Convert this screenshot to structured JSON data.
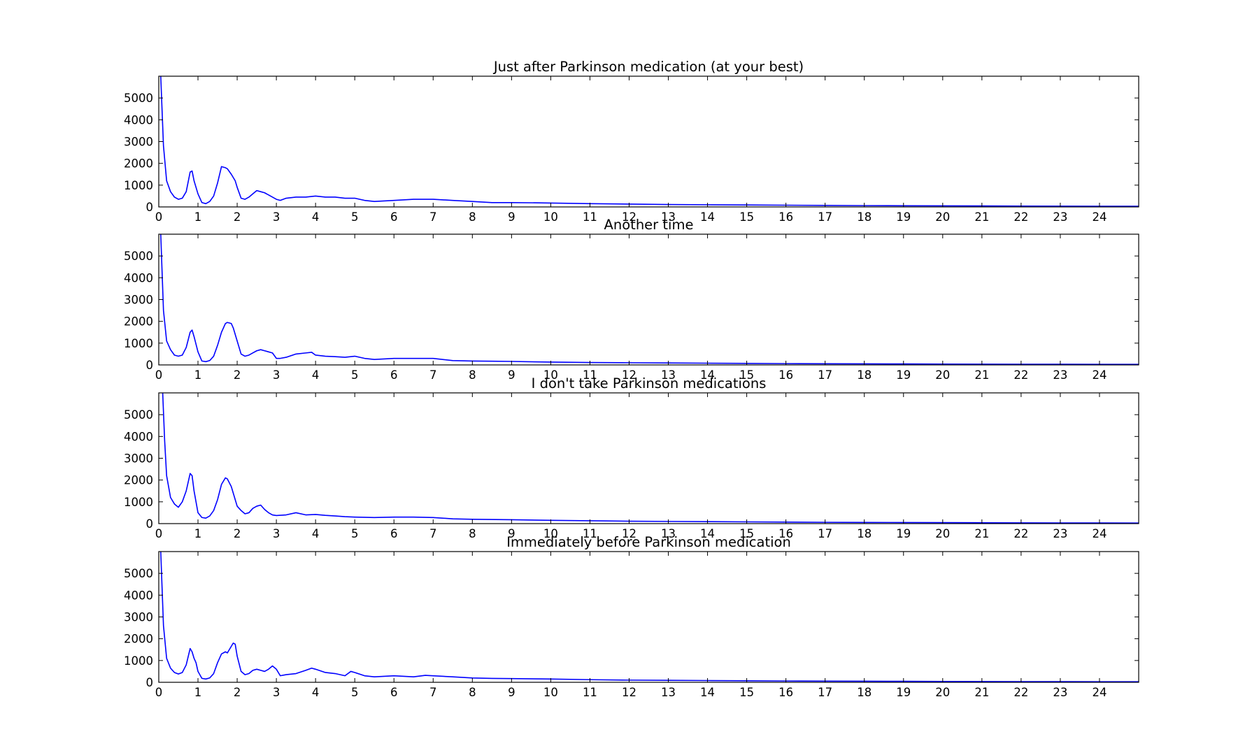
{
  "style": {
    "line_color": "#0000ff",
    "axes_color": "#000000",
    "background": "#ffffff"
  },
  "chart_data": [
    {
      "type": "line",
      "title": "Just after Parkinson medication (at your best)",
      "xlabel": "",
      "ylabel": "",
      "xlim": [
        0,
        25
      ],
      "ylim": [
        0,
        6000
      ],
      "xticks": [
        0,
        1,
        2,
        3,
        4,
        5,
        6,
        7,
        8,
        9,
        10,
        11,
        12,
        13,
        14,
        15,
        16,
        17,
        18,
        19,
        20,
        21,
        22,
        23,
        24
      ],
      "yticks": [
        0,
        1000,
        2000,
        3000,
        4000,
        5000
      ],
      "grid": false,
      "series": [
        {
          "x": [
            0.05,
            0.12,
            0.2,
            0.3,
            0.4,
            0.5,
            0.6,
            0.7,
            0.8,
            0.85,
            0.9,
            1.0,
            1.1,
            1.2,
            1.3,
            1.4,
            1.5,
            1.6,
            1.7,
            1.75,
            1.85,
            1.95,
            2.0,
            2.1,
            2.2,
            2.3,
            2.4,
            2.5,
            2.6,
            2.7,
            2.8,
            2.9,
            3.0,
            3.1,
            3.25,
            3.5,
            3.75,
            4.0,
            4.25,
            4.5,
            4.75,
            5.0,
            5.25,
            5.5,
            6.0,
            6.5,
            7.0,
            7.5,
            8.0,
            8.5,
            9.0,
            10.0,
            11.0,
            12.0,
            13.0,
            14.0,
            15.0,
            16.0,
            17.0,
            18.0,
            19.0,
            20.0,
            21.0,
            22.0,
            23.0,
            24.0,
            25.0
          ],
          "y": [
            6000,
            2800,
            1200,
            700,
            450,
            350,
            400,
            700,
            1600,
            1650,
            1200,
            600,
            200,
            150,
            250,
            500,
            1100,
            1850,
            1800,
            1750,
            1500,
            1200,
            900,
            400,
            350,
            450,
            600,
            750,
            700,
            650,
            550,
            450,
            350,
            300,
            400,
            450,
            450,
            500,
            450,
            450,
            400,
            400,
            300,
            250,
            300,
            350,
            350,
            300,
            250,
            200,
            200,
            180,
            150,
            130,
            110,
            100,
            90,
            80,
            70,
            60,
            55,
            50,
            45,
            40,
            35,
            30,
            30
          ]
        }
      ]
    },
    {
      "type": "line",
      "title": "Another time",
      "xlabel": "",
      "ylabel": "",
      "xlim": [
        0,
        25
      ],
      "ylim": [
        0,
        6000
      ],
      "xticks": [
        0,
        1,
        2,
        3,
        4,
        5,
        6,
        7,
        8,
        9,
        10,
        11,
        12,
        13,
        14,
        15,
        16,
        17,
        18,
        19,
        20,
        21,
        22,
        23,
        24
      ],
      "yticks": [
        0,
        1000,
        2000,
        3000,
        4000,
        5000
      ],
      "grid": false,
      "series": [
        {
          "x": [
            0.05,
            0.12,
            0.2,
            0.3,
            0.4,
            0.5,
            0.6,
            0.7,
            0.8,
            0.85,
            0.9,
            1.0,
            1.1,
            1.2,
            1.3,
            1.4,
            1.5,
            1.6,
            1.7,
            1.75,
            1.85,
            1.9,
            2.0,
            2.1,
            2.2,
            2.3,
            2.4,
            2.5,
            2.6,
            2.7,
            2.8,
            2.9,
            3.0,
            3.1,
            3.25,
            3.5,
            3.75,
            3.9,
            4.0,
            4.25,
            4.5,
            4.75,
            5.0,
            5.25,
            5.5,
            6.0,
            6.5,
            7.0,
            7.5,
            8.0,
            8.5,
            9.0,
            10.0,
            11.0,
            12.0,
            13.0,
            14.0,
            15.0,
            16.0,
            17.0,
            18.0,
            19.0,
            20.0,
            21.0,
            22.0,
            23.0,
            24.0,
            25.0
          ],
          "y": [
            6000,
            2500,
            1100,
            700,
            450,
            400,
            450,
            800,
            1500,
            1600,
            1300,
            600,
            180,
            150,
            200,
            400,
            900,
            1500,
            1900,
            1950,
            1900,
            1700,
            1100,
            500,
            400,
            450,
            550,
            650,
            700,
            650,
            600,
            550,
            300,
            300,
            350,
            500,
            550,
            580,
            450,
            400,
            380,
            350,
            400,
            300,
            250,
            300,
            300,
            300,
            200,
            180,
            170,
            160,
            130,
            110,
            100,
            90,
            80,
            70,
            60,
            55,
            50,
            45,
            40,
            35,
            30,
            30,
            25,
            25
          ]
        }
      ]
    },
    {
      "type": "line",
      "title": "I don't take Parkinson medications",
      "xlabel": "",
      "ylabel": "",
      "xlim": [
        0,
        25
      ],
      "ylim": [
        0,
        6000
      ],
      "xticks": [
        0,
        1,
        2,
        3,
        4,
        5,
        6,
        7,
        8,
        9,
        10,
        11,
        12,
        13,
        14,
        15,
        16,
        17,
        18,
        19,
        20,
        21,
        22,
        23,
        24
      ],
      "yticks": [
        0,
        1000,
        2000,
        3000,
        4000,
        5000
      ],
      "grid": false,
      "series": [
        {
          "x": [
            0.1,
            0.15,
            0.2,
            0.3,
            0.4,
            0.5,
            0.6,
            0.7,
            0.8,
            0.85,
            0.9,
            1.0,
            1.1,
            1.2,
            1.3,
            1.4,
            1.5,
            1.6,
            1.7,
            1.75,
            1.85,
            1.95,
            2.0,
            2.1,
            2.2,
            2.3,
            2.4,
            2.5,
            2.6,
            2.7,
            2.8,
            2.9,
            3.0,
            3.25,
            3.5,
            3.75,
            4.0,
            4.25,
            4.5,
            4.75,
            5.0,
            5.5,
            6.0,
            6.5,
            7.0,
            7.5,
            8.0,
            9.0,
            10.0,
            11.0,
            12.0,
            13.0,
            14.0,
            15.0,
            16.0,
            17.0,
            18.0,
            19.0,
            20.0,
            21.0,
            22.0,
            23.0,
            24.0,
            25.0
          ],
          "y": [
            6000,
            3800,
            2200,
            1200,
            900,
            750,
            1000,
            1500,
            2300,
            2200,
            1500,
            500,
            280,
            250,
            350,
            600,
            1100,
            1800,
            2100,
            2050,
            1700,
            1100,
            800,
            600,
            450,
            500,
            700,
            800,
            850,
            650,
            500,
            400,
            370,
            400,
            500,
            400,
            420,
            380,
            350,
            320,
            300,
            280,
            300,
            300,
            280,
            220,
            200,
            180,
            150,
            130,
            110,
            100,
            90,
            80,
            70,
            60,
            55,
            50,
            45,
            40,
            35,
            30,
            30,
            25
          ]
        }
      ]
    },
    {
      "type": "line",
      "title": "Immediately before Parkinson medication",
      "xlabel": "",
      "ylabel": "",
      "xlim": [
        0,
        25
      ],
      "ylim": [
        0,
        6000
      ],
      "xticks": [
        0,
        1,
        2,
        3,
        4,
        5,
        6,
        7,
        8,
        9,
        10,
        11,
        12,
        13,
        14,
        15,
        16,
        17,
        18,
        19,
        20,
        21,
        22,
        23,
        24
      ],
      "yticks": [
        0,
        1000,
        2000,
        3000,
        4000,
        5000
      ],
      "grid": false,
      "series": [
        {
          "x": [
            0.05,
            0.12,
            0.2,
            0.3,
            0.4,
            0.5,
            0.6,
            0.7,
            0.8,
            0.85,
            0.9,
            0.95,
            1.0,
            1.1,
            1.2,
            1.3,
            1.4,
            1.5,
            1.6,
            1.7,
            1.75,
            1.8,
            1.9,
            1.95,
            2.0,
            2.1,
            2.2,
            2.3,
            2.4,
            2.5,
            2.6,
            2.7,
            2.8,
            2.9,
            3.0,
            3.1,
            3.25,
            3.5,
            3.75,
            3.9,
            4.0,
            4.25,
            4.5,
            4.75,
            4.9,
            5.0,
            5.25,
            5.5,
            6.0,
            6.5,
            6.8,
            7.0,
            7.5,
            8.0,
            8.5,
            9.0,
            10.0,
            11.0,
            12.0,
            13.0,
            14.0,
            15.0,
            16.0,
            17.0,
            18.0,
            19.0,
            20.0,
            21.0,
            22.0,
            23.0,
            24.0,
            25.0
          ],
          "y": [
            6000,
            2600,
            1100,
            650,
            450,
            380,
            450,
            800,
            1550,
            1400,
            1100,
            900,
            500,
            180,
            150,
            200,
            400,
            900,
            1300,
            1400,
            1350,
            1500,
            1800,
            1750,
            1200,
            500,
            350,
            400,
            550,
            600,
            550,
            500,
            600,
            750,
            600,
            300,
            350,
            400,
            550,
            650,
            600,
            450,
            400,
            300,
            500,
            450,
            300,
            250,
            300,
            250,
            320,
            300,
            250,
            200,
            180,
            170,
            150,
            120,
            100,
            90,
            80,
            70,
            60,
            55,
            50,
            45,
            40,
            35,
            30,
            30,
            25,
            25
          ]
        }
      ]
    }
  ]
}
